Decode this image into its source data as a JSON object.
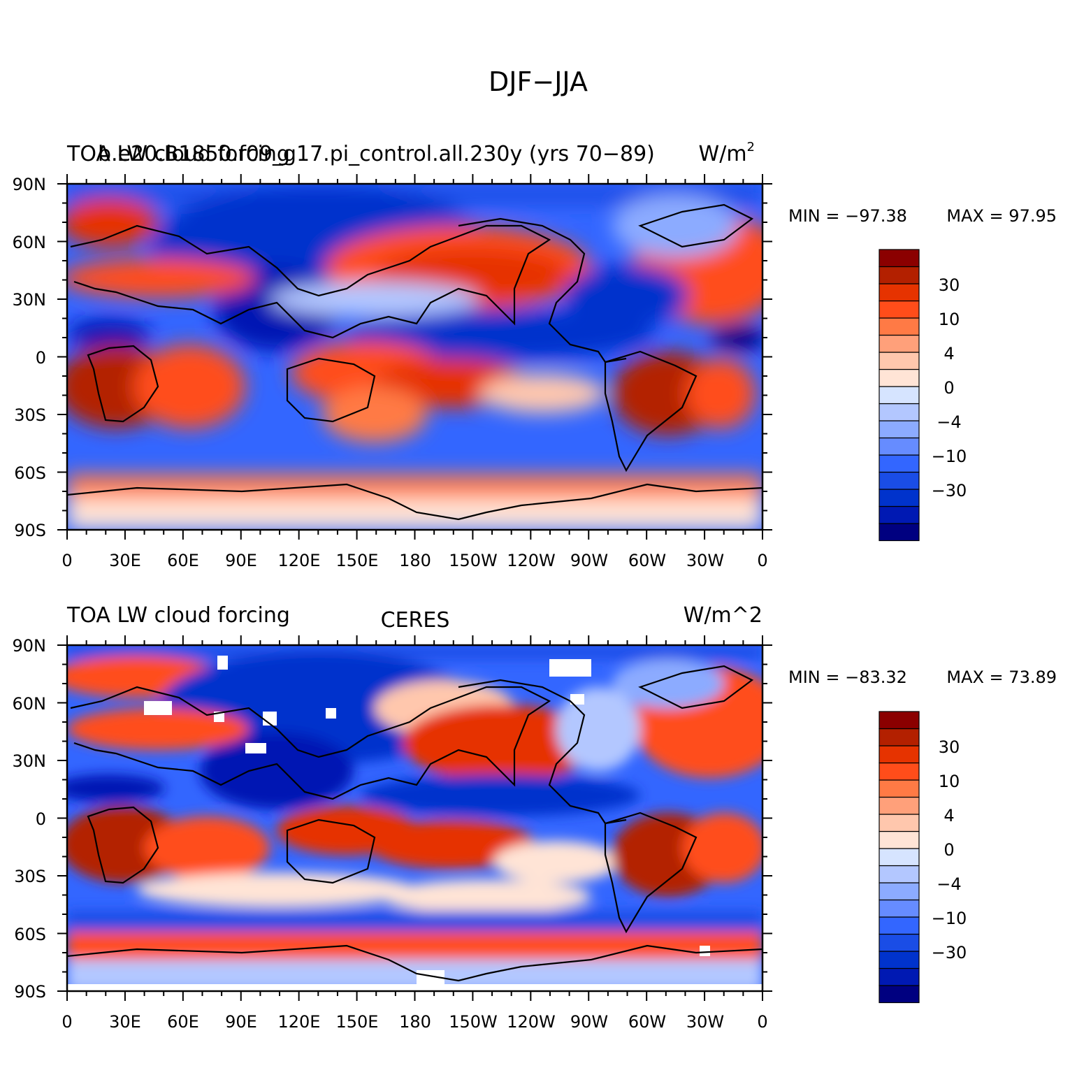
{
  "figure_title": "DJF−JJA",
  "colors": {
    "palette": [
      "#000080",
      "#0019b3",
      "#0033cc",
      "#1a4de6",
      "#3366ff",
      "#668cff",
      "#8cabff",
      "#b3c7ff",
      "#d6e4ff",
      "#ffe4d6",
      "#ffc7ad",
      "#ffa07a",
      "#ff7a45",
      "#ff4d1a",
      "#e63300",
      "#b32000",
      "#8b0000"
    ],
    "coastline": "#000000"
  },
  "panels": [
    {
      "id": "model",
      "left_title": "TOA LW cloud forcing",
      "center_title": "b.e20.B1850.f09_g17.pi_control.all.230y (yrs 70−89)",
      "right_title": "W/m",
      "right_title_sup": "2",
      "min_label": "MIN = −97.38",
      "max_label": "MAX =  97.95",
      "stats": {
        "min": -97.38,
        "max": 97.95
      },
      "has_missing": false
    },
    {
      "id": "obs",
      "left_title": "TOA LW cloud forcing",
      "center_title": "CERES",
      "right_title": "W/m^2",
      "right_title_sup": "",
      "min_label": "MIN = −83.32",
      "max_label": "MAX =  73.89",
      "stats": {
        "min": -83.32,
        "max": 73.89
      },
      "has_missing": true
    }
  ],
  "axes": {
    "lat_labels": [
      "90N",
      "60N",
      "30N",
      "0",
      "30S",
      "60S",
      "90S"
    ],
    "lon_labels": [
      "0",
      "30E",
      "60E",
      "90E",
      "120E",
      "150E",
      "180",
      "150W",
      "120W",
      "90W",
      "60W",
      "30W",
      "0"
    ]
  },
  "colorbar": {
    "levels": [
      -40,
      -35,
      -30,
      -20,
      -15,
      -10,
      -7,
      -4,
      -2,
      0,
      2,
      4,
      7,
      10,
      15,
      20,
      30,
      40
    ],
    "tick_labels": [
      "30",
      "10",
      "4",
      "0",
      "−4",
      "−10",
      "−30"
    ]
  },
  "chart_data": [
    {
      "type": "heatmap",
      "title": "b.e20.B1850.f09_g17.pi_control.all.230y (yrs 70−89)",
      "variable": "TOA LW cloud forcing",
      "units": "W/m2",
      "season": "DJF−JJA",
      "xlim": [
        0,
        360
      ],
      "ylim": [
        -90,
        90
      ],
      "min": -97.38,
      "max": 97.95,
      "color_levels": [
        -40,
        -35,
        -30,
        -20,
        -15,
        -10,
        -7,
        -4,
        -2,
        0,
        2,
        4,
        7,
        10,
        15,
        20,
        30,
        40
      ]
    },
    {
      "type": "heatmap",
      "title": "CERES",
      "variable": "TOA LW cloud forcing",
      "units": "W/m^2",
      "season": "DJF−JJA",
      "xlim": [
        0,
        360
      ],
      "ylim": [
        -90,
        90
      ],
      "min": -83.32,
      "max": 73.89,
      "color_levels": [
        -40,
        -35,
        -30,
        -20,
        -15,
        -10,
        -7,
        -4,
        -2,
        0,
        2,
        4,
        7,
        10,
        15,
        20,
        30,
        40
      ]
    }
  ]
}
